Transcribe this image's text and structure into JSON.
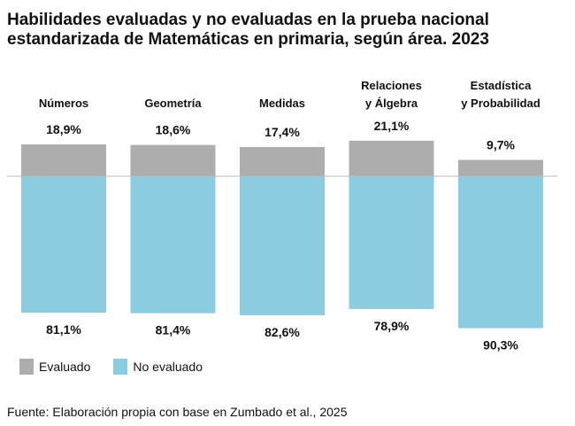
{
  "chart_data": {
    "type": "bar",
    "title": "Habilidades evaluadas y no evaluadas en la prueba nacional estandarizada de Matemáticas en primaria, según área. 2023",
    "title_lines": [
      "Habilidades evaluadas y no evaluadas en la prueba nacional",
      "estandarizada de Matemáticas en primaria, según área. 2023"
    ],
    "categories": [
      [
        "Números"
      ],
      [
        "Geometría"
      ],
      [
        "Medidas"
      ],
      [
        "Relaciones",
        "y Álgebra"
      ],
      [
        "Estadística",
        "y Probabilidad"
      ]
    ],
    "series": [
      {
        "name": "Evaluado",
        "values": [
          18.9,
          18.6,
          17.4,
          21.1,
          9.7
        ],
        "labels": [
          "18,9%",
          "18,6%",
          "17,4%",
          "21,1%",
          "9,7%"
        ],
        "color": "#adadad"
      },
      {
        "name": "No evaluado",
        "values": [
          81.1,
          81.4,
          82.6,
          78.9,
          90.3
        ],
        "labels": [
          "81,1%",
          "81,4%",
          "82,6%",
          "78,9%",
          "90,3%"
        ],
        "color": "#8ccce1"
      }
    ],
    "baseline_color": "#bbbbbb",
    "grid": false,
    "legend_position": "bottom-left",
    "source": "Fuente: Elaboración propia con base en Zumbado et al., 2025"
  }
}
